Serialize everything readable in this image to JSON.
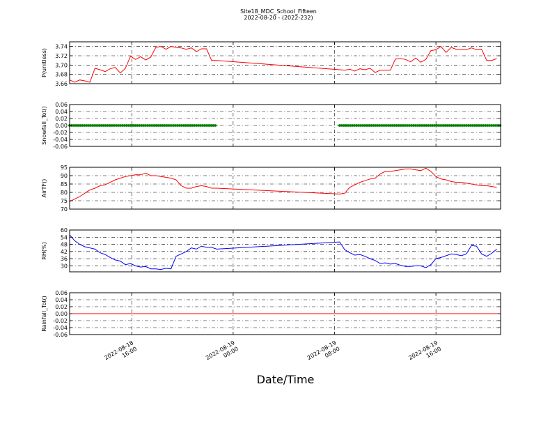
{
  "chart_data": {
    "type": "line",
    "title": "Site18_MDC_School_Fifteen",
    "subtitle": "2022-08-20 - (2022-232)",
    "xlabel": "Date/Time",
    "x_tick_labels": [
      [
        "2022-08-18",
        "16:00"
      ],
      [
        "2022-08-19",
        "00:00"
      ],
      [
        "2022-08-19",
        "08:00"
      ],
      [
        "2022-08-19",
        "16:00"
      ]
    ],
    "x_range": [
      "2022-08-18 11:06",
      "2022-08-19 21:06"
    ],
    "x_ticks": [
      "2022-08-18 16:00",
      "2022-08-19 00:00",
      "2022-08-19 08:00",
      "2022-08-19 16:00"
    ],
    "grid": true,
    "panels": [
      {
        "ylabel": "P(unitless)",
        "ylim": [
          3.66,
          3.75
        ],
        "yticks": [
          3.66,
          3.68,
          3.7,
          3.72,
          3.74
        ],
        "ytick_labels": [
          "3.66",
          "3.68",
          "3.70",
          "3.72",
          "3.74"
        ],
        "color": "#ff0000",
        "marker": false,
        "series": [
          {
            "x": "2022-08-18 11:06",
            "y": 3.668
          },
          {
            "x": "2022-08-18 11:30",
            "y": 3.663
          },
          {
            "x": "2022-08-18 11:54",
            "y": 3.668
          },
          {
            "x": "2022-08-18 12:18",
            "y": 3.666
          },
          {
            "x": "2022-08-18 12:42",
            "y": 3.663
          },
          {
            "x": "2022-08-18 13:06",
            "y": 3.693
          },
          {
            "x": "2022-08-18 13:30",
            "y": 3.69
          },
          {
            "x": "2022-08-18 13:54",
            "y": 3.686
          },
          {
            "x": "2022-08-18 14:18",
            "y": 3.692
          },
          {
            "x": "2022-08-18 14:42",
            "y": 3.695
          },
          {
            "x": "2022-08-18 15:06",
            "y": 3.683
          },
          {
            "x": "2022-08-18 15:30",
            "y": 3.693
          },
          {
            "x": "2022-08-18 15:54",
            "y": 3.719
          },
          {
            "x": "2022-08-18 16:18",
            "y": 3.712
          },
          {
            "x": "2022-08-18 16:42",
            "y": 3.718
          },
          {
            "x": "2022-08-18 17:06",
            "y": 3.711
          },
          {
            "x": "2022-08-18 17:30",
            "y": 3.717
          },
          {
            "x": "2022-08-18 17:54",
            "y": 3.738
          },
          {
            "x": "2022-08-18 18:18",
            "y": 3.74
          },
          {
            "x": "2022-08-18 18:42",
            "y": 3.734
          },
          {
            "x": "2022-08-18 19:06",
            "y": 3.74
          },
          {
            "x": "2022-08-18 19:30",
            "y": 3.738
          },
          {
            "x": "2022-08-18 19:54",
            "y": 3.737
          },
          {
            "x": "2022-08-18 20:18",
            "y": 3.734
          },
          {
            "x": "2022-08-18 20:42",
            "y": 3.737
          },
          {
            "x": "2022-08-18 21:06",
            "y": 3.729
          },
          {
            "x": "2022-08-18 21:30",
            "y": 3.735
          },
          {
            "x": "2022-08-18 21:54",
            "y": 3.735
          },
          {
            "x": "2022-08-18 22:18",
            "y": 3.71
          },
          {
            "x": "2022-08-18 22:42",
            "y": 3.71
          },
          {
            "x": "2022-08-19 08:24",
            "y": 3.69
          },
          {
            "x": "2022-08-19 08:48",
            "y": 3.689
          },
          {
            "x": "2022-08-19 09:12",
            "y": 3.691
          },
          {
            "x": "2022-08-19 09:36",
            "y": 3.687
          },
          {
            "x": "2022-08-19 10:00",
            "y": 3.692
          },
          {
            "x": "2022-08-19 10:24",
            "y": 3.69
          },
          {
            "x": "2022-08-19 10:48",
            "y": 3.693
          },
          {
            "x": "2022-08-19 11:12",
            "y": 3.684
          },
          {
            "x": "2022-08-19 11:36",
            "y": 3.689
          },
          {
            "x": "2022-08-19 12:00",
            "y": 3.689
          },
          {
            "x": "2022-08-19 12:24",
            "y": 3.689
          },
          {
            "x": "2022-08-19 12:48",
            "y": 3.713
          },
          {
            "x": "2022-08-19 13:12",
            "y": 3.714
          },
          {
            "x": "2022-08-19 13:36",
            "y": 3.712
          },
          {
            "x": "2022-08-19 14:00",
            "y": 3.707
          },
          {
            "x": "2022-08-19 14:24",
            "y": 3.715
          },
          {
            "x": "2022-08-19 14:48",
            "y": 3.706
          },
          {
            "x": "2022-08-19 15:12",
            "y": 3.712
          },
          {
            "x": "2022-08-19 15:36",
            "y": 3.731
          },
          {
            "x": "2022-08-19 16:00",
            "y": 3.733
          },
          {
            "x": "2022-08-19 16:24",
            "y": 3.74
          },
          {
            "x": "2022-08-19 16:48",
            "y": 3.727
          },
          {
            "x": "2022-08-19 17:12",
            "y": 3.738
          },
          {
            "x": "2022-08-19 17:36",
            "y": 3.734
          },
          {
            "x": "2022-08-19 18:00",
            "y": 3.734
          },
          {
            "x": "2022-08-19 18:24",
            "y": 3.733
          },
          {
            "x": "2022-08-19 18:48",
            "y": 3.737
          },
          {
            "x": "2022-08-19 19:12",
            "y": 3.733
          },
          {
            "x": "2022-08-19 19:36",
            "y": 3.734
          },
          {
            "x": "2022-08-19 20:00",
            "y": 3.71
          },
          {
            "x": "2022-08-19 20:24",
            "y": 3.71
          },
          {
            "x": "2022-08-19 20:48",
            "y": 3.714
          }
        ]
      },
      {
        "ylabel": "Snowfall_Tot()",
        "ylim": [
          -0.06,
          0.06
        ],
        "yticks": [
          -0.06,
          -0.04,
          -0.02,
          0.0,
          0.02,
          0.04,
          0.06
        ],
        "ytick_labels": [
          "-0.06",
          "-0.04",
          "-0.02",
          "0.00",
          "0.02",
          "0.04",
          "0.06"
        ],
        "color": "#008000",
        "marker": true,
        "constant_segments": [
          {
            "x_start": "2022-08-18 11:06",
            "x_end": "2022-08-18 22:42",
            "y": 0.0,
            "marker_every_minutes": 10
          },
          {
            "x_start": "2022-08-19 08:24",
            "x_end": "2022-08-19 21:06",
            "y": 0.0,
            "marker_every_minutes": 10
          }
        ]
      },
      {
        "ylabel": "AirTF()",
        "ylim": [
          70,
          95
        ],
        "yticks": [
          70,
          75,
          80,
          85,
          90,
          95
        ],
        "ytick_labels": [
          "70",
          "75",
          "80",
          "85",
          "90",
          "95"
        ],
        "color": "#ff0000",
        "marker": false,
        "series": [
          {
            "x": "2022-08-18 11:06",
            "y": 74.5
          },
          {
            "x": "2022-08-18 11:30",
            "y": 76.0
          },
          {
            "x": "2022-08-18 11:54",
            "y": 77.5
          },
          {
            "x": "2022-08-18 12:18",
            "y": 79.5
          },
          {
            "x": "2022-08-18 12:42",
            "y": 81.5
          },
          {
            "x": "2022-08-18 13:06",
            "y": 82.5
          },
          {
            "x": "2022-08-18 13:30",
            "y": 84.0
          },
          {
            "x": "2022-08-18 13:54",
            "y": 84.5
          },
          {
            "x": "2022-08-18 14:18",
            "y": 86.0
          },
          {
            "x": "2022-08-18 14:42",
            "y": 87.5
          },
          {
            "x": "2022-08-18 15:06",
            "y": 88.5
          },
          {
            "x": "2022-08-18 15:30",
            "y": 89.5
          },
          {
            "x": "2022-08-18 15:54",
            "y": 90.0
          },
          {
            "x": "2022-08-18 16:18",
            "y": 90.5
          },
          {
            "x": "2022-08-18 16:42",
            "y": 90.5
          },
          {
            "x": "2022-08-18 17:06",
            "y": 91.5
          },
          {
            "x": "2022-08-18 17:30",
            "y": 90.0
          },
          {
            "x": "2022-08-18 17:54",
            "y": 90.0
          },
          {
            "x": "2022-08-18 18:18",
            "y": 89.5
          },
          {
            "x": "2022-08-18 18:42",
            "y": 89.0
          },
          {
            "x": "2022-08-18 19:06",
            "y": 88.5
          },
          {
            "x": "2022-08-18 19:30",
            "y": 87.5
          },
          {
            "x": "2022-08-18 19:54",
            "y": 84.0
          },
          {
            "x": "2022-08-18 20:18",
            "y": 82.5
          },
          {
            "x": "2022-08-18 20:42",
            "y": 82.5
          },
          {
            "x": "2022-08-18 21:06",
            "y": 83.5
          },
          {
            "x": "2022-08-18 21:30",
            "y": 84.0
          },
          {
            "x": "2022-08-18 21:54",
            "y": 83.5
          },
          {
            "x": "2022-08-18 22:18",
            "y": 82.5
          },
          {
            "x": "2022-08-18 22:42",
            "y": 82.5
          },
          {
            "x": "2022-08-19 08:24",
            "y": 79.0
          },
          {
            "x": "2022-08-19 08:48",
            "y": 79.5
          },
          {
            "x": "2022-08-19 09:12",
            "y": 83.0
          },
          {
            "x": "2022-08-19 09:36",
            "y": 84.5
          },
          {
            "x": "2022-08-19 10:00",
            "y": 86.0
          },
          {
            "x": "2022-08-19 10:24",
            "y": 87.0
          },
          {
            "x": "2022-08-19 10:48",
            "y": 88.0
          },
          {
            "x": "2022-08-19 11:12",
            "y": 88.5
          },
          {
            "x": "2022-08-19 11:36",
            "y": 91.0
          },
          {
            "x": "2022-08-19 12:00",
            "y": 92.5
          },
          {
            "x": "2022-08-19 12:24",
            "y": 92.5
          },
          {
            "x": "2022-08-19 12:48",
            "y": 93.0
          },
          {
            "x": "2022-08-19 13:12",
            "y": 93.5
          },
          {
            "x": "2022-08-19 13:36",
            "y": 94.0
          },
          {
            "x": "2022-08-19 14:00",
            "y": 94.0
          },
          {
            "x": "2022-08-19 14:24",
            "y": 93.5
          },
          {
            "x": "2022-08-19 14:48",
            "y": 93.0
          },
          {
            "x": "2022-08-19 15:12",
            "y": 94.5
          },
          {
            "x": "2022-08-19 15:36",
            "y": 92.5
          },
          {
            "x": "2022-08-19 16:00",
            "y": 89.5
          },
          {
            "x": "2022-08-19 16:24",
            "y": 88.0
          },
          {
            "x": "2022-08-19 16:48",
            "y": 87.5
          },
          {
            "x": "2022-08-19 17:12",
            "y": 86.5
          },
          {
            "x": "2022-08-19 17:36",
            "y": 86.0
          },
          {
            "x": "2022-08-19 18:00",
            "y": 86.0
          },
          {
            "x": "2022-08-19 18:24",
            "y": 85.5
          },
          {
            "x": "2022-08-19 18:48",
            "y": 85.0
          },
          {
            "x": "2022-08-19 19:12",
            "y": 84.5
          },
          {
            "x": "2022-08-19 19:36",
            "y": 84.0
          },
          {
            "x": "2022-08-19 20:00",
            "y": 84.0
          },
          {
            "x": "2022-08-19 20:24",
            "y": 83.5
          },
          {
            "x": "2022-08-19 20:48",
            "y": 83.0
          }
        ]
      },
      {
        "ylabel": "RH(%)",
        "ylim": [
          25,
          60
        ],
        "yticks": [
          30,
          36,
          42,
          48,
          54,
          60
        ],
        "ytick_labels": [
          "30",
          "36",
          "42",
          "48",
          "54",
          "60"
        ],
        "color": "#0000ff",
        "marker": false,
        "series": [
          {
            "x": "2022-08-18 11:06",
            "y": 56.0
          },
          {
            "x": "2022-08-18 11:30",
            "y": 51.0
          },
          {
            "x": "2022-08-18 11:54",
            "y": 48.0
          },
          {
            "x": "2022-08-18 12:18",
            "y": 46.0
          },
          {
            "x": "2022-08-18 12:42",
            "y": 45.0
          },
          {
            "x": "2022-08-18 13:06",
            "y": 44.0
          },
          {
            "x": "2022-08-18 13:30",
            "y": 41.0
          },
          {
            "x": "2022-08-18 13:54",
            "y": 39.5
          },
          {
            "x": "2022-08-18 14:18",
            "y": 37.0
          },
          {
            "x": "2022-08-18 14:42",
            "y": 35.0
          },
          {
            "x": "2022-08-18 15:06",
            "y": 34.0
          },
          {
            "x": "2022-08-18 15:30",
            "y": 31.0
          },
          {
            "x": "2022-08-18 15:54",
            "y": 32.0
          },
          {
            "x": "2022-08-18 16:18",
            "y": 30.0
          },
          {
            "x": "2022-08-18 16:42",
            "y": 29.0
          },
          {
            "x": "2022-08-18 17:06",
            "y": 29.5
          },
          {
            "x": "2022-08-18 17:30",
            "y": 27.5
          },
          {
            "x": "2022-08-18 17:54",
            "y": 27.5
          },
          {
            "x": "2022-08-18 18:18",
            "y": 27.0
          },
          {
            "x": "2022-08-18 18:42",
            "y": 28.0
          },
          {
            "x": "2022-08-18 19:06",
            "y": 27.5
          },
          {
            "x": "2022-08-18 19:30",
            "y": 38.0
          },
          {
            "x": "2022-08-18 19:54",
            "y": 40.0
          },
          {
            "x": "2022-08-18 20:18",
            "y": 42.0
          },
          {
            "x": "2022-08-18 20:42",
            "y": 45.0
          },
          {
            "x": "2022-08-18 21:06",
            "y": 44.0
          },
          {
            "x": "2022-08-18 21:30",
            "y": 46.5
          },
          {
            "x": "2022-08-18 21:54",
            "y": 45.5
          },
          {
            "x": "2022-08-18 22:18",
            "y": 45.5
          },
          {
            "x": "2022-08-18 22:42",
            "y": 44.0
          },
          {
            "x": "2022-08-19 08:24",
            "y": 50.0
          },
          {
            "x": "2022-08-19 08:48",
            "y": 43.5
          },
          {
            "x": "2022-08-19 09:12",
            "y": 41.0
          },
          {
            "x": "2022-08-19 09:36",
            "y": 39.0
          },
          {
            "x": "2022-08-19 10:00",
            "y": 39.5
          },
          {
            "x": "2022-08-19 10:24",
            "y": 38.0
          },
          {
            "x": "2022-08-19 10:48",
            "y": 36.0
          },
          {
            "x": "2022-08-19 11:12",
            "y": 34.5
          },
          {
            "x": "2022-08-19 11:36",
            "y": 32.0
          },
          {
            "x": "2022-08-19 12:00",
            "y": 32.5
          },
          {
            "x": "2022-08-19 12:24",
            "y": 31.5
          },
          {
            "x": "2022-08-19 12:48",
            "y": 32.0
          },
          {
            "x": "2022-08-19 13:12",
            "y": 30.5
          },
          {
            "x": "2022-08-19 13:36",
            "y": 29.5
          },
          {
            "x": "2022-08-19 14:00",
            "y": 29.5
          },
          {
            "x": "2022-08-19 14:24",
            "y": 30.0
          },
          {
            "x": "2022-08-19 14:48",
            "y": 30.0
          },
          {
            "x": "2022-08-19 15:12",
            "y": 28.5
          },
          {
            "x": "2022-08-19 15:36",
            "y": 31.0
          },
          {
            "x": "2022-08-19 16:00",
            "y": 36.0
          },
          {
            "x": "2022-08-19 16:24",
            "y": 37.0
          },
          {
            "x": "2022-08-19 16:48",
            "y": 38.5
          },
          {
            "x": "2022-08-19 17:12",
            "y": 40.0
          },
          {
            "x": "2022-08-19 17:36",
            "y": 39.5
          },
          {
            "x": "2022-08-19 18:00",
            "y": 38.5
          },
          {
            "x": "2022-08-19 18:24",
            "y": 40.0
          },
          {
            "x": "2022-08-19 18:48",
            "y": 47.0
          },
          {
            "x": "2022-08-19 19:12",
            "y": 46.5
          },
          {
            "x": "2022-08-19 19:36",
            "y": 40.0
          },
          {
            "x": "2022-08-19 20:00",
            "y": 38.0
          },
          {
            "x": "2022-08-19 20:24",
            "y": 40.5
          },
          {
            "x": "2022-08-19 20:48",
            "y": 44.0
          }
        ]
      },
      {
        "ylabel": "Rainfall_Tot()",
        "ylim": [
          -0.06,
          0.06
        ],
        "yticks": [
          -0.06,
          -0.04,
          -0.02,
          0.0,
          0.02,
          0.04,
          0.06
        ],
        "ytick_labels": [
          "-0.06",
          "-0.04",
          "-0.02",
          "0.00",
          "0.02",
          "0.04",
          "0.06"
        ],
        "color": "#ff0000",
        "marker": false,
        "constant_segments": [
          {
            "x_start": "2022-08-18 11:06",
            "x_end": "2022-08-19 21:06",
            "y": 0.0
          }
        ]
      }
    ]
  }
}
